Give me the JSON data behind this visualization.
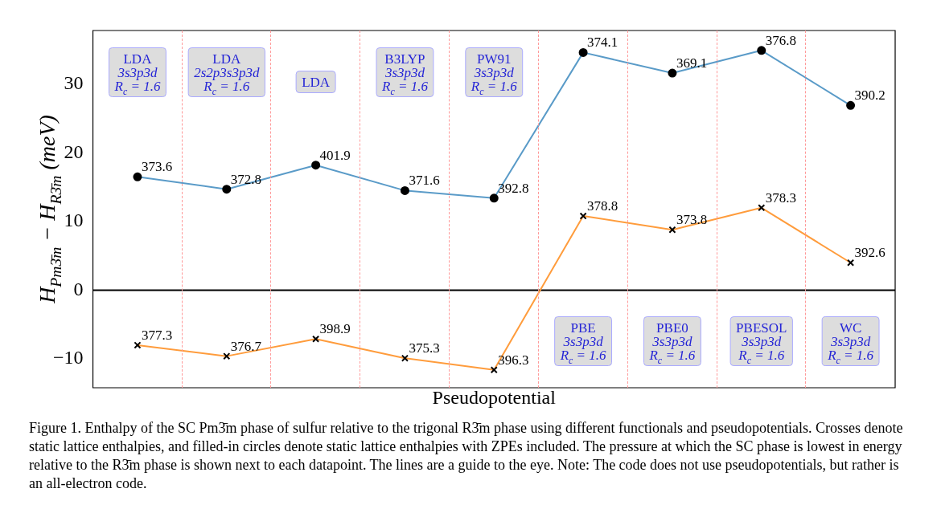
{
  "chart_data": {
    "type": "line",
    "categories": [
      null,
      null,
      null,
      null,
      null,
      null,
      null,
      null,
      null
    ],
    "xlabel": "Pseudopotential",
    "ylabel": "H$_{Pm3̄m}$ − H$_{R3̄m}$ (meV)",
    "ylim": [
      -14.2,
      37.8
    ],
    "yticks": [
      {
        "value": -10,
        "label": "−10"
      },
      0,
      10,
      20,
      30
    ],
    "tick_labels": "y",
    "grid": false,
    "legend": false,
    "series": [
      {
        "color": "#5a9bc8",
        "marker": "circle",
        "values": [
          16.5,
          14.7,
          18.2,
          14.5,
          13.4,
          34.6,
          31.6,
          34.9,
          26.9
        ]
      },
      {
        "color": "#ff9c3c",
        "marker": "cross",
        "values": [
          -8.0,
          -9.6,
          -7.1,
          -9.9,
          -11.6,
          10.8,
          8.8,
          12.0,
          4.0
        ]
      }
    ],
    "ref_lines": [
      {
        "axis": "y",
        "value": 0,
        "color": "#000000",
        "line_style": "solid"
      }
    ],
    "annotations": [
      "LDA\n3s3p3d\nR$_{c}$ = 1.6",
      "LDA\n2s2p3s3p3d\nR$_{c}$ = 1.6",
      "LDA",
      "B3LYP\n3s3p3d\nR$_{c}$ = 1.6",
      "PW91\n3s3p3d\nR$_{c}$ = 1.6",
      "PBE\n3s3p3d\nR$_{c}$ = 1.6",
      "PBE0\n3s3p3d\nR$_{c}$ = 1.6",
      "PBESOL\n3s3p3d\nR$_{c}$ = 1.6",
      "WC\n3s3p3d\nR$_{c}$ = 1.6",
      "373.6",
      "372.8",
      "401.9",
      "371.6",
      "392.8",
      "374.1",
      "369.1",
      "376.8",
      "390.2",
      "377.3",
      "376.7",
      "398.9",
      "375.3",
      "396.3",
      "378.8",
      "373.8",
      "378.3",
      "392.6",
      "Figure 1. Enthalpy of the SC Pm3̄m phase of sulfur relative to the trigonal R3̄m phase using different functionals and pseudopotentials. Crosses denote static lattice enthalpies, and filled-in circles denote static lattice enthalpies with ZPEs included. The pressure at which the SC phase is lowest in energy relative to the R3̄m phase is shown next to each datapoint. The lines are a guide to the eye. Note: The code does not use pseudopotentials, but rather is an all-electron code."
    ]
  }
}
